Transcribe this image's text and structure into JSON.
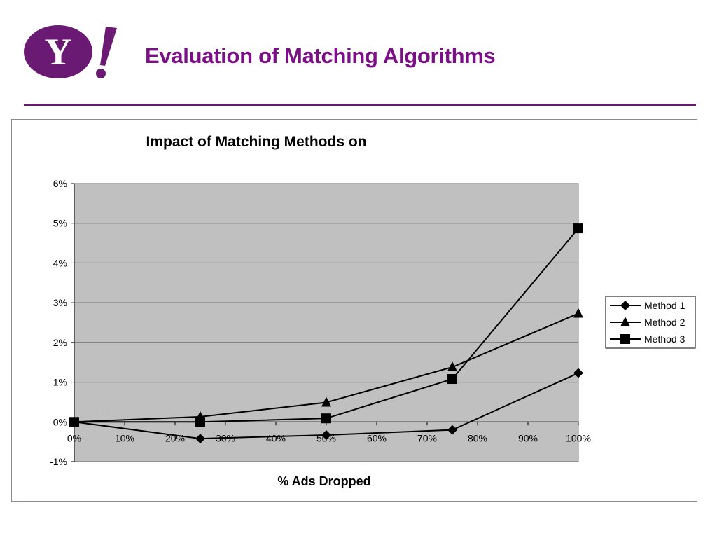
{
  "slide": {
    "title": "Evaluation of Matching Algorithms",
    "logo_text": "Y!",
    "accent_color": "#7a0f86",
    "logo_color": "#6b1a73"
  },
  "chart_data": {
    "type": "line",
    "title": "Impact of Matching Methods on",
    "xlabel": "% Ads Dropped",
    "ylabel": "",
    "x_ticks": [
      "0%",
      "10%",
      "20%",
      "30%",
      "40%",
      "50%",
      "60%",
      "70%",
      "80%",
      "90%",
      "100%"
    ],
    "y_ticks": [
      "6%",
      "5%",
      "4%",
      "3%",
      "2%",
      "1%",
      "0%",
      "-1%"
    ],
    "xlim": [
      0,
      100
    ],
    "ylim": [
      -1,
      6
    ],
    "plot_background": "#c0c0c0",
    "grid": "horizontal",
    "legend_position": "right",
    "series": [
      {
        "name": "Method 1",
        "marker": "diamond",
        "x": [
          0,
          25,
          50,
          75,
          100
        ],
        "y": [
          0.0,
          -0.42,
          -0.33,
          -0.2,
          1.23
        ]
      },
      {
        "name": "Method 2",
        "marker": "triangle",
        "x": [
          0,
          25,
          50,
          75,
          100
        ],
        "y": [
          0.0,
          0.13,
          0.49,
          1.38,
          2.73
        ]
      },
      {
        "name": "Method 3",
        "marker": "square",
        "x": [
          0,
          25,
          50,
          75,
          100
        ],
        "y": [
          0.0,
          0.0,
          0.09,
          1.08,
          4.87
        ]
      }
    ]
  }
}
